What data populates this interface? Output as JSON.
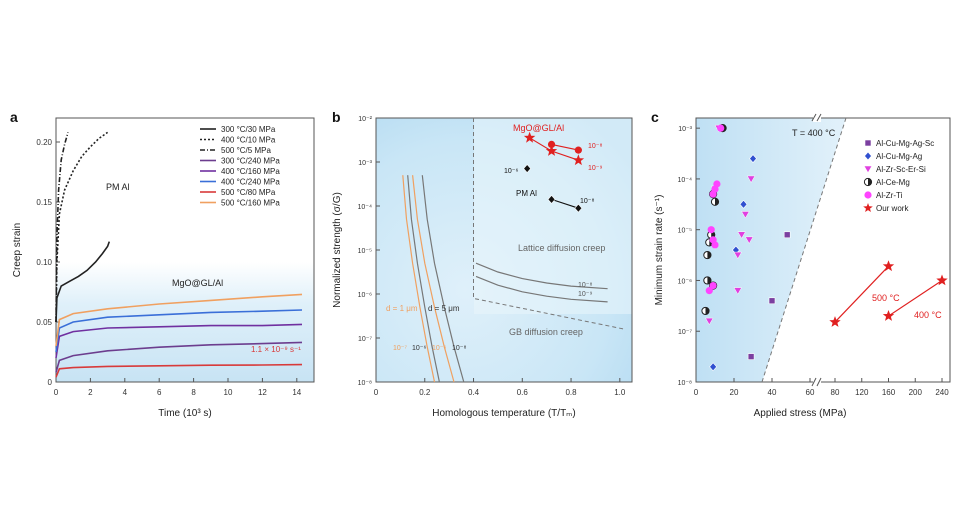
{
  "chart_data": [
    {
      "type": "line",
      "panel_label": "a",
      "xlabel": "Time (10³ s)",
      "ylabel": "Creep strain",
      "xlim": [
        0,
        15
      ],
      "ylim": [
        0,
        0.22
      ],
      "xticks": [
        0,
        2,
        4,
        6,
        8,
        10,
        12,
        14
      ],
      "yticks": [
        0,
        0.05,
        0.1,
        0.15,
        0.2
      ],
      "ytick_labels": [
        "0",
        "0.05",
        "0.10",
        "0.15",
        "0.20"
      ],
      "legend": [
        "300 °C/30 MPa",
        "400 °C/10 MPa",
        "500 °C/5 MPa",
        "300 °C/240 MPa",
        "400 °C/160 MPa",
        "400 °C/240 MPa",
        "500 °C/80 MPa",
        "500 °C/160 MPa"
      ],
      "annotations": [
        "PM Al",
        "MgO@GL/Al",
        "1.1 × 10⁻⁹ s⁻¹"
      ],
      "series": [
        {
          "name": "300 °C/30 MPa",
          "color": "#222222",
          "dash": "solid",
          "x": [
            0,
            0.05,
            0.3,
            0.8,
            1.3,
            1.8,
            2.3,
            2.7,
            3.0,
            3.1
          ],
          "y": [
            0.05,
            0.07,
            0.08,
            0.084,
            0.088,
            0.093,
            0.1,
            0.107,
            0.113,
            0.117
          ]
        },
        {
          "name": "400 °C/10 MPa",
          "color": "#222222",
          "dash": "dot",
          "x": [
            0,
            0.05,
            0.2,
            0.5,
            1.0,
            1.5,
            2.0,
            2.5,
            3.0
          ],
          "y": [
            0.05,
            0.1,
            0.14,
            0.16,
            0.176,
            0.188,
            0.196,
            0.203,
            0.208
          ]
        },
        {
          "name": "500 °C/5 MPa",
          "color": "#222222",
          "dash": "dashdot",
          "x": [
            0,
            0.05,
            0.15,
            0.3,
            0.5,
            0.7
          ],
          "y": [
            0.05,
            0.12,
            0.16,
            0.185,
            0.198,
            0.208
          ]
        },
        {
          "name": "300 °C/240 MPa",
          "color": "#6c3d8e",
          "dash": "solid",
          "x": [
            0,
            0.2,
            1,
            3,
            6,
            9,
            12,
            14.3
          ],
          "y": [
            0.008,
            0.018,
            0.022,
            0.026,
            0.029,
            0.031,
            0.032,
            0.033
          ]
        },
        {
          "name": "400 °C/160 MPa",
          "color": "#7030a0",
          "dash": "solid",
          "x": [
            0,
            0.2,
            1,
            3,
            6,
            9,
            12,
            14.3
          ],
          "y": [
            0.02,
            0.038,
            0.042,
            0.045,
            0.046,
            0.047,
            0.047,
            0.048
          ]
        },
        {
          "name": "400 °C/240 MPa",
          "color": "#3a6fd8",
          "dash": "solid",
          "x": [
            0,
            0.2,
            1,
            3,
            6,
            9,
            12,
            14.3
          ],
          "y": [
            0.025,
            0.045,
            0.05,
            0.054,
            0.056,
            0.058,
            0.059,
            0.06
          ]
        },
        {
          "name": "500 °C/80 MPa",
          "color": "#d83a3a",
          "dash": "solid",
          "x": [
            0,
            0.2,
            1,
            3,
            6,
            9,
            12,
            14.3
          ],
          "y": [
            0.004,
            0.011,
            0.012,
            0.013,
            0.0135,
            0.014,
            0.0142,
            0.0145
          ]
        },
        {
          "name": "500 °C/160 MPa",
          "color": "#f0a060",
          "dash": "solid",
          "x": [
            0,
            0.2,
            1,
            3,
            6,
            9,
            12,
            14.3
          ],
          "y": [
            0.03,
            0.052,
            0.057,
            0.061,
            0.065,
            0.068,
            0.071,
            0.073
          ]
        }
      ]
    },
    {
      "type": "line",
      "panel_label": "b",
      "xlabel": "Homologous temperature (T/Tₘ)",
      "ylabel": "Normalized strength (σ/G)",
      "xlim": [
        0,
        1.05
      ],
      "ylim_log10": [
        -8,
        -2
      ],
      "xticks": [
        0,
        0.2,
        0.4,
        0.6,
        0.8,
        1.0
      ],
      "xtick_labels": [
        "0",
        "0.2",
        "0.4",
        "0.6",
        "0.8",
        "1.0"
      ],
      "yticks_log10": [
        -8,
        -7,
        -6,
        -5,
        -4,
        -3,
        -2
      ],
      "ytick_labels": [
        "10⁻⁸",
        "10⁻⁷",
        "10⁻⁶",
        "10⁻⁵",
        "10⁻⁴",
        "10⁻³",
        "10⁻²"
      ],
      "region_labels": [
        "Lattice diffusion creep",
        "GB diffusion creep"
      ],
      "annotations": [
        "MgO@GL/Al",
        "PM Al",
        "d = 1 μm",
        "d = 5 μm",
        "10⁻⁸",
        "10⁻⁹",
        "10⁻⁸",
        "10⁻⁹",
        "10⁻⁶",
        "10⁻⁸",
        "10⁻⁷",
        "10⁻⁶",
        "10⁻⁶",
        "10⁻⁸"
      ],
      "series": [
        {
          "name": "MgO@GL/Al 10⁻⁸",
          "color": "#e02020",
          "marker": "circle",
          "x": [
            0.72,
            0.83
          ],
          "y_log10": [
            -2.6,
            -2.73
          ]
        },
        {
          "name": "MgO@GL/Al 10⁻⁹",
          "color": "#e02020",
          "marker": "star",
          "x": [
            0.63,
            0.72,
            0.83
          ],
          "y_log10": [
            -2.45,
            -2.75,
            -2.96
          ]
        },
        {
          "name": "PM Al 10⁻⁶",
          "color": "#111111",
          "marker": "diamond",
          "x": [
            0.62
          ],
          "y_log10": [
            -3.15
          ]
        },
        {
          "name": "PM Al 10⁻⁸",
          "color": "#111111",
          "marker": "diamond",
          "x": [
            0.72,
            0.83
          ],
          "y_log10": [
            -3.85,
            -4.05
          ]
        },
        {
          "name": "d = 1 μm 10⁻⁷",
          "color": "#f0a060",
          "style": "curve",
          "x": [
            0.15,
            0.17,
            0.2,
            0.24,
            0.28,
            0.32
          ],
          "y_log10": [
            -3.3,
            -4.3,
            -5.3,
            -6.3,
            -7.2,
            -8
          ]
        },
        {
          "name": "d = 1 μm 10⁻⁸",
          "color": "#f0a060",
          "style": "curve",
          "x": [
            0.11,
            0.125,
            0.15,
            0.18,
            0.21,
            0.24
          ],
          "y_log10": [
            -3.3,
            -4.3,
            -5.3,
            -6.3,
            -7.2,
            -8
          ]
        },
        {
          "name": "d = 5 μm 10⁻⁶",
          "color": "#777777",
          "style": "curve",
          "x": [
            0.19,
            0.21,
            0.24,
            0.28,
            0.32,
            0.36
          ],
          "y_log10": [
            -3.3,
            -4.3,
            -5.3,
            -6.3,
            -7.2,
            -8
          ]
        },
        {
          "name": "d = 5 μm 10⁻⁸",
          "color": "#777777",
          "style": "curve",
          "x": [
            0.13,
            0.145,
            0.17,
            0.2,
            0.23,
            0.26
          ],
          "y_log10": [
            -3.3,
            -4.3,
            -5.3,
            -6.3,
            -7.2,
            -8
          ]
        },
        {
          "name": "Lattice 10⁻⁸",
          "color": "#777777",
          "style": "curve",
          "x": [
            0.41,
            0.5,
            0.6,
            0.7,
            0.8,
            0.95
          ],
          "y_log10": [
            -5.3,
            -5.5,
            -5.65,
            -5.75,
            -5.82,
            -5.88
          ]
        },
        {
          "name": "Lattice 10⁻⁹",
          "color": "#777777",
          "style": "curve",
          "x": [
            0.41,
            0.5,
            0.6,
            0.7,
            0.8,
            0.95
          ],
          "y_log10": [
            -5.6,
            -5.8,
            -5.95,
            -6.05,
            -6.12,
            -6.18
          ]
        },
        {
          "name": "boundary",
          "color": "#777777",
          "style": "dashed",
          "x": [
            0.4,
            0.4,
            1.02
          ],
          "y_log10": [
            -2,
            -6.1,
            -6.8
          ]
        }
      ]
    },
    {
      "type": "scatter",
      "panel_label": "c",
      "xlabel": "Applied stress (MPa)",
      "ylabel": "Minimum strain rate (s⁻¹)",
      "xticks": [
        0,
        20,
        40,
        60,
        80,
        120,
        160,
        200,
        240
      ],
      "xtick_labels": [
        "0",
        "20",
        "40",
        "60",
        "80",
        "120",
        "160",
        "200",
        "240"
      ],
      "x_break": "axis break between 60 and 80",
      "yticks_log10": [
        -8,
        -7,
        -6,
        -5,
        -4,
        -3
      ],
      "ytick_labels": [
        "10⁻⁸",
        "10⁻⁷",
        "10⁻⁶",
        "10⁻⁵",
        "10⁻⁴",
        "10⁻³"
      ],
      "region_label": "T = 400 °C",
      "annotations": [
        "500 °C",
        "400 °C"
      ],
      "legend": [
        "Al-Cu-Mg-Ag-Sc",
        "Al-Cu-Mg-Ag",
        "Al-Zr-Sc-Er-Si",
        "Al-Ce-Mg",
        "Al-Zr-Ti",
        "Our work"
      ],
      "series": [
        {
          "name": "Al-Cu-Mg-Ag-Sc",
          "color": "#7b3fa0",
          "marker": "square",
          "x": [
            29,
            48,
            40
          ],
          "y_log10": [
            -7.5,
            -5.1,
            -6.4
          ]
        },
        {
          "name": "Al-Cu-Mg-Ag",
          "color": "#3050d0",
          "marker": "diamond",
          "x": [
            30,
            25,
            21,
            10,
            9
          ],
          "y_log10": [
            -3.6,
            -4.5,
            -5.4,
            -5.3,
            -7.7
          ]
        },
        {
          "name": "Al-Zr-Sc-Er-Si",
          "color": "#e040e0",
          "marker": "triangle-down",
          "x": [
            12,
            29,
            26,
            24,
            22,
            28,
            22,
            10,
            7
          ],
          "y_log10": [
            -3.0,
            -4.0,
            -4.7,
            -5.1,
            -5.5,
            -5.2,
            -6.2,
            -4.2,
            -6.8
          ]
        },
        {
          "name": "Al-Ce-Mg",
          "color": "#222222",
          "marker": "circle-half",
          "x": [
            14,
            9,
            10,
            8,
            7,
            6,
            6,
            5,
            9
          ],
          "y_log10": [
            -3.0,
            -4.3,
            -4.45,
            -5.1,
            -5.25,
            -5.5,
            -6.0,
            -6.6,
            -6.1
          ]
        },
        {
          "name": "Al-Zr-Ti",
          "color": "#ff44ff",
          "marker": "circle",
          "x": [
            13,
            11,
            10,
            9,
            8,
            9,
            10,
            9,
            7
          ],
          "y_log10": [
            -3.0,
            -4.1,
            -4.2,
            -4.3,
            -5.0,
            -5.2,
            -5.3,
            -6.1,
            -6.2
          ]
        },
        {
          "name": "Our work 500 °C",
          "color": "#e02020",
          "marker": "star",
          "x": [
            80,
            160
          ],
          "y_log10": [
            -6.82,
            -5.72
          ]
        },
        {
          "name": "Our work 400 °C",
          "color": "#e02020",
          "marker": "star",
          "x": [
            160,
            240
          ],
          "y_log10": [
            -6.7,
            -6.0
          ]
        }
      ]
    }
  ]
}
